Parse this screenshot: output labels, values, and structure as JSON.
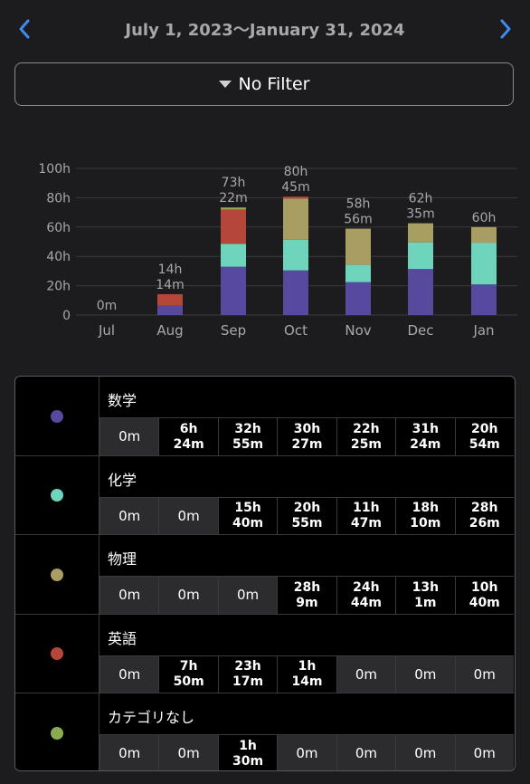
{
  "header": {
    "date_range": "July 1, 2023～January 31, 2024"
  },
  "filter": {
    "label": "No Filter"
  },
  "colors": {
    "数学": "#574a9e",
    "化学": "#6fd4bc",
    "物理": "#a89e62",
    "英語": "#b5463a",
    "カテゴリなし": "#8aab4f"
  },
  "chart_data": {
    "type": "bar",
    "stacked": true,
    "categories": [
      "Jul",
      "Aug",
      "Sep",
      "Oct",
      "Nov",
      "Dec",
      "Jan"
    ],
    "ylim": [
      0,
      100
    ],
    "yticks": [
      "0",
      "20h",
      "40h",
      "60h",
      "80h",
      "100h"
    ],
    "totals": [
      "0m",
      "14h\n14m",
      "73h\n22m",
      "80h\n45m",
      "58h\n56m",
      "62h\n35m",
      "60h"
    ],
    "series": [
      {
        "name": "数学",
        "values": [
          0,
          6.4,
          32.92,
          30.45,
          22.42,
          31.4,
          20.9
        ]
      },
      {
        "name": "化学",
        "values": [
          0,
          0,
          15.67,
          20.92,
          11.78,
          18.17,
          28.43
        ]
      },
      {
        "name": "物理",
        "values": [
          0,
          0,
          0,
          28.15,
          24.73,
          13.02,
          10.67
        ]
      },
      {
        "name": "英語",
        "values": [
          0,
          7.83,
          23.28,
          1.23,
          0,
          0,
          0
        ]
      },
      {
        "name": "カテゴリなし",
        "values": [
          0,
          0,
          1.5,
          0,
          0,
          0,
          0
        ]
      }
    ]
  },
  "table": {
    "rows": [
      {
        "name": "数学",
        "color": "#574a9e",
        "cells": [
          "0m",
          "6h\n24m",
          "32h\n55m",
          "30h\n27m",
          "22h\n25m",
          "31h\n24m",
          "20h\n54m"
        ]
      },
      {
        "name": "化学",
        "color": "#6fd4bc",
        "cells": [
          "0m",
          "0m",
          "15h\n40m",
          "20h\n55m",
          "11h\n47m",
          "18h\n10m",
          "28h\n26m"
        ]
      },
      {
        "name": "物理",
        "color": "#a89e62",
        "cells": [
          "0m",
          "0m",
          "0m",
          "28h\n9m",
          "24h\n44m",
          "13h\n1m",
          "10h\n40m"
        ]
      },
      {
        "name": "英語",
        "color": "#b5463a",
        "cells": [
          "0m",
          "7h\n50m",
          "23h\n17m",
          "1h\n14m",
          "0m",
          "0m",
          "0m"
        ]
      },
      {
        "name": "カテゴリなし",
        "color": "#8aab4f",
        "cells": [
          "0m",
          "0m",
          "1h\n30m",
          "0m",
          "0m",
          "0m",
          "0m"
        ]
      }
    ]
  }
}
